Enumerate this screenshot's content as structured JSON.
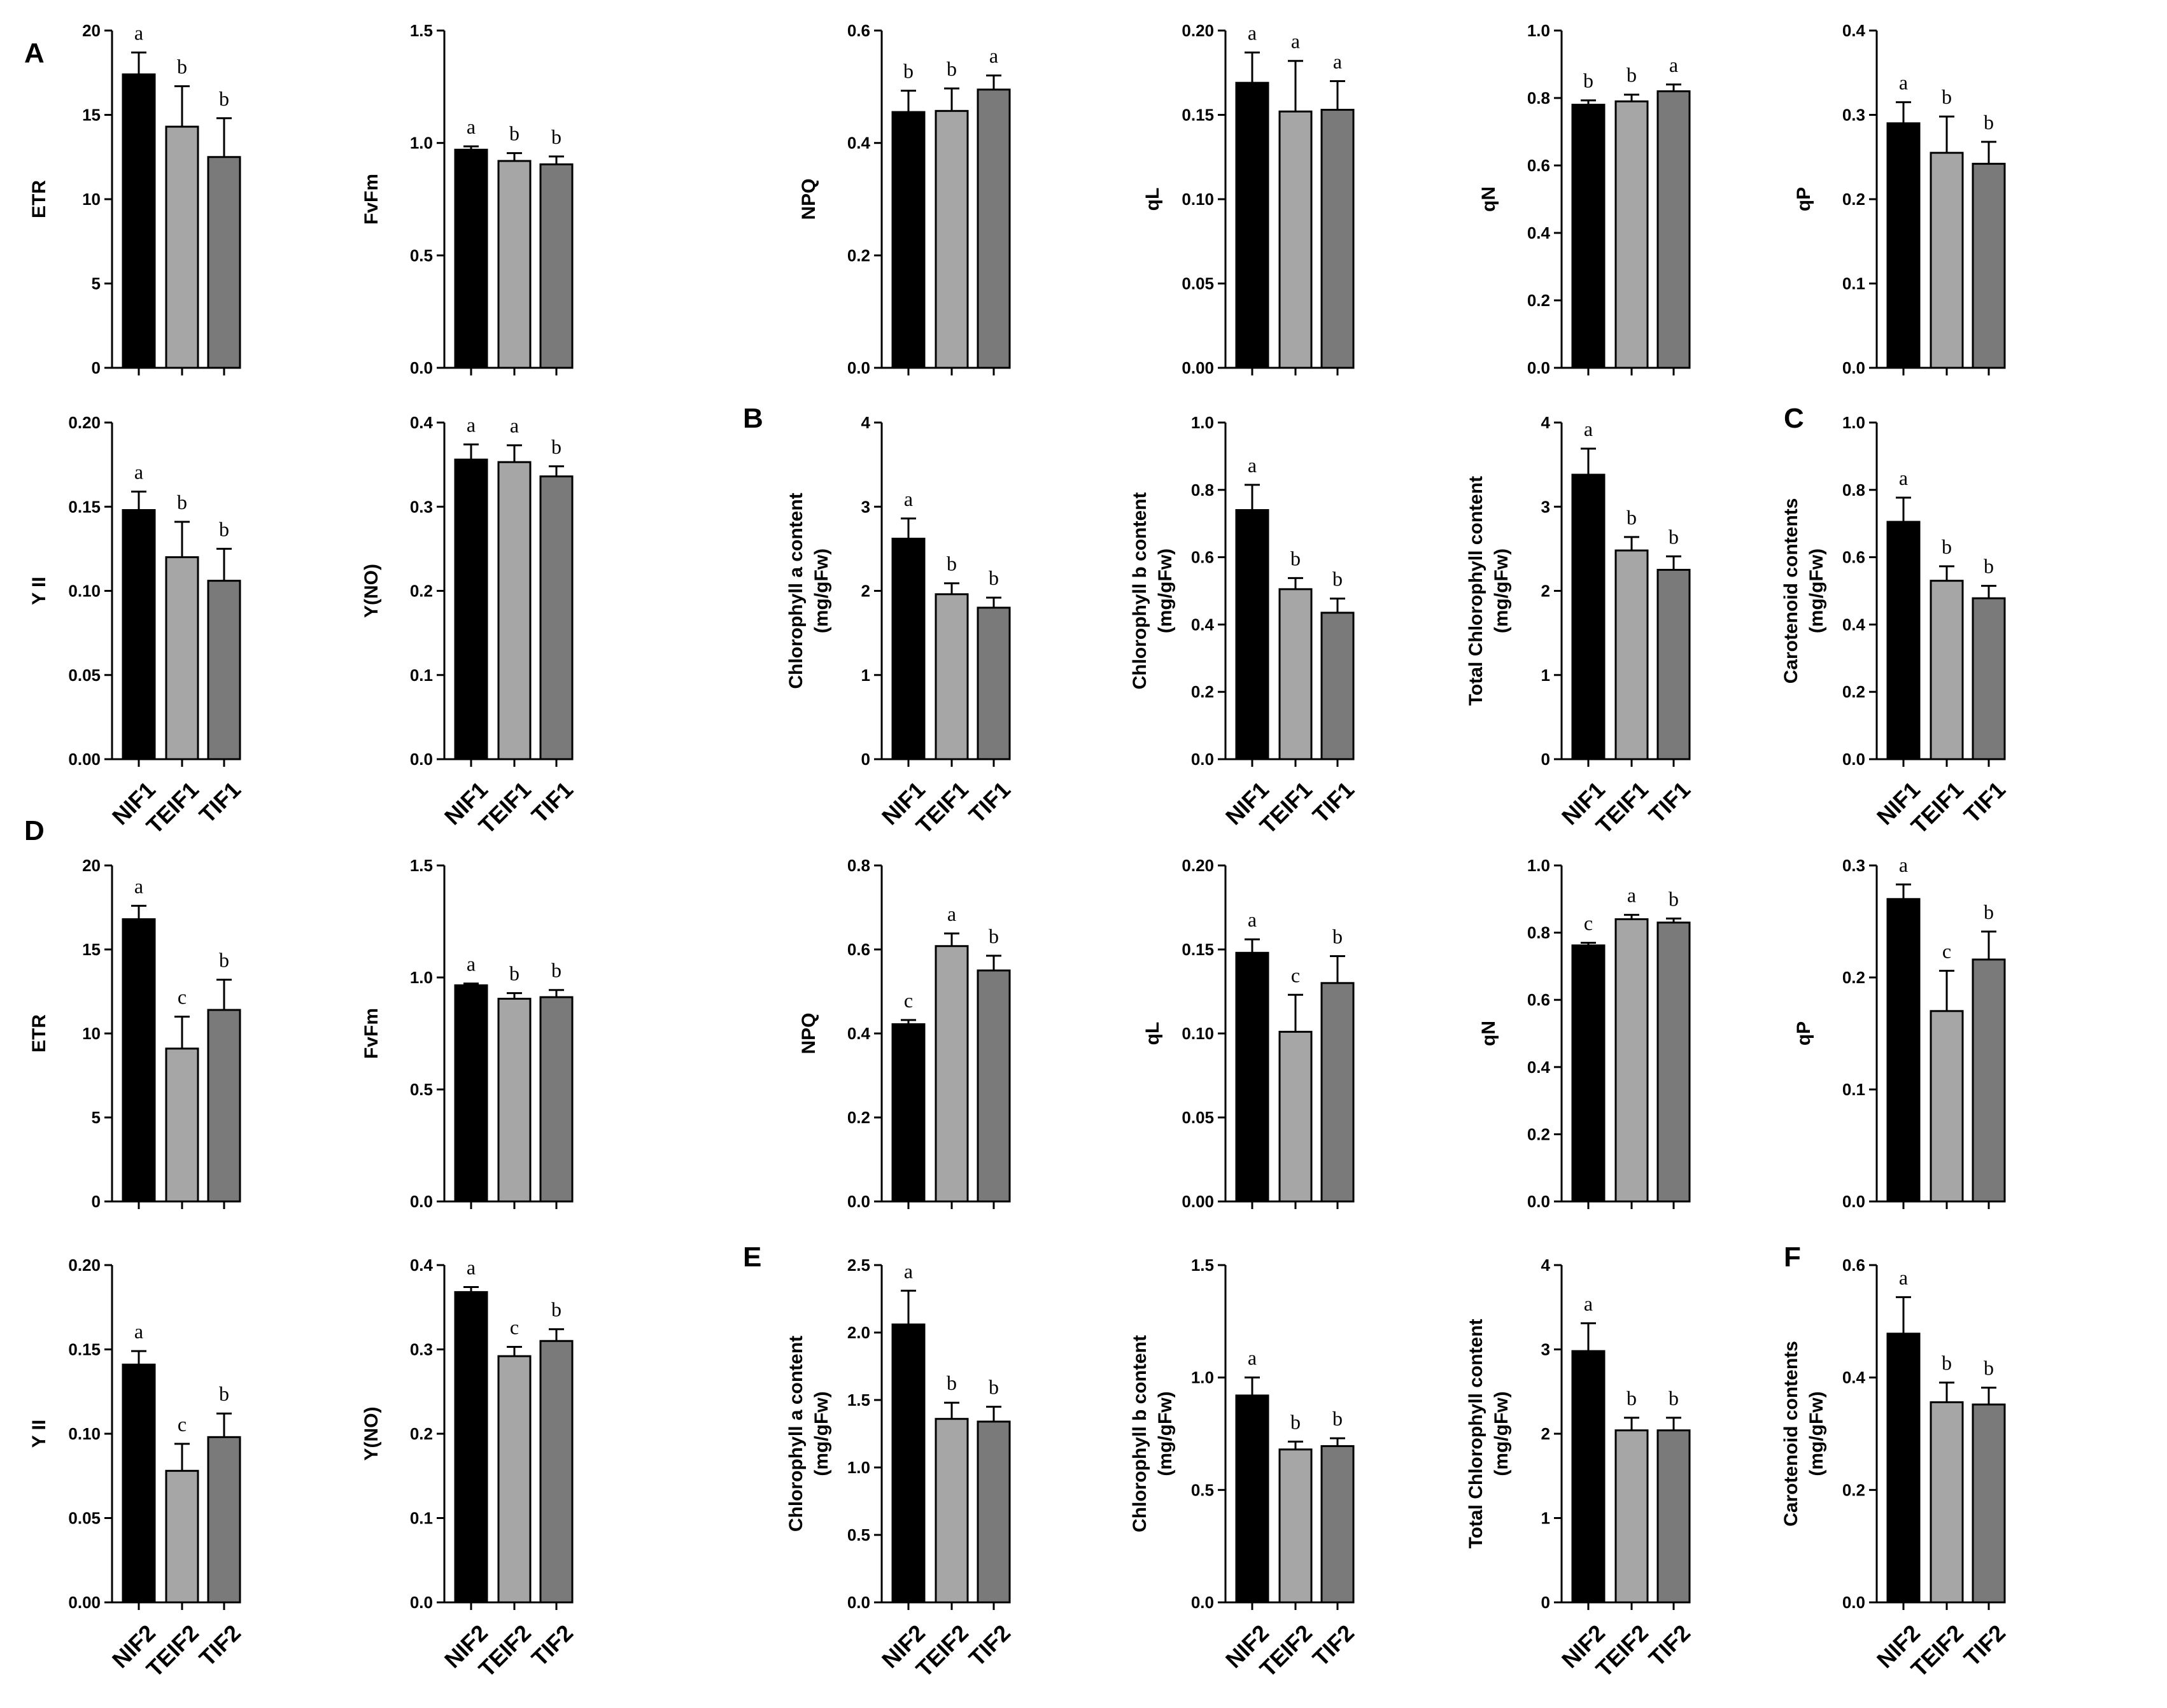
{
  "figure": {
    "bar_colors": [
      "#000000",
      "#a6a6a6",
      "#7a7a7a"
    ],
    "panel_labels": [
      "A",
      "B",
      "C",
      "D",
      "E",
      "F"
    ]
  },
  "chart_data": [
    {
      "type": "bar",
      "group": "A",
      "ylabel": [
        "ETR"
      ],
      "categories": [
        "NIF1",
        "TEIF1",
        "TIF1"
      ],
      "values": [
        17.4,
        14.3,
        12.5
      ],
      "errors": [
        1.3,
        2.4,
        2.3
      ],
      "letters": [
        "a",
        "b",
        "b"
      ],
      "ylim": [
        0,
        20
      ],
      "yticks": [
        "0",
        "5",
        "10",
        "15",
        "20"
      ]
    },
    {
      "type": "bar",
      "group": "A",
      "ylabel": [
        "FvFm"
      ],
      "categories": [
        "NIF1",
        "TEIF1",
        "TIF1"
      ],
      "values": [
        0.97,
        0.92,
        0.905
      ],
      "errors": [
        0.015,
        0.035,
        0.035
      ],
      "letters": [
        "a",
        "b",
        "b"
      ],
      "ylim": [
        0,
        1.5
      ],
      "yticks": [
        "0.0",
        "0.5",
        "1.0",
        "1.5"
      ]
    },
    {
      "type": "bar",
      "group": "A",
      "ylabel": [
        "NPQ"
      ],
      "categories": [
        "NIF1",
        "TEIF1",
        "TIF1"
      ],
      "values": [
        0.455,
        0.457,
        0.495
      ],
      "errors": [
        0.038,
        0.04,
        0.025
      ],
      "letters": [
        "b",
        "b",
        "a"
      ],
      "ylim": [
        0,
        0.6
      ],
      "yticks": [
        "0.0",
        "0.2",
        "0.4",
        "0.6"
      ]
    },
    {
      "type": "bar",
      "group": "A",
      "ylabel": [
        "qL"
      ],
      "categories": [
        "NIF1",
        "TEIF1",
        "TIF1"
      ],
      "values": [
        0.169,
        0.152,
        0.153
      ],
      "errors": [
        0.018,
        0.03,
        0.017
      ],
      "letters": [
        "a",
        "a",
        "a"
      ],
      "ylim": [
        0,
        0.2
      ],
      "yticks": [
        "0.00",
        "0.05",
        "0.10",
        "0.15",
        "0.20"
      ]
    },
    {
      "type": "bar",
      "group": "A",
      "ylabel": [
        "qN"
      ],
      "categories": [
        "NIF1",
        "TEIF1",
        "TIF1"
      ],
      "values": [
        0.78,
        0.79,
        0.82
      ],
      "errors": [
        0.013,
        0.02,
        0.02
      ],
      "letters": [
        "b",
        "b",
        "a"
      ],
      "ylim": [
        0,
        1
      ],
      "yticks": [
        "0.0",
        "0.2",
        "0.4",
        "0.6",
        "0.8",
        "1.0"
      ]
    },
    {
      "type": "bar",
      "group": "A",
      "ylabel": [
        "qP"
      ],
      "categories": [
        "NIF1",
        "TEIF1",
        "TIF1"
      ],
      "values": [
        0.29,
        0.255,
        0.242
      ],
      "errors": [
        0.025,
        0.043,
        0.026
      ],
      "letters": [
        "a",
        "b",
        "b"
      ],
      "ylim": [
        0,
        0.4
      ],
      "yticks": [
        "0.0",
        "0.1",
        "0.2",
        "0.3",
        "0.4"
      ]
    },
    {
      "type": "bar",
      "group": "A",
      "ylabel": [
        "Y II"
      ],
      "categories": [
        "NIF1",
        "TEIF1",
        "TIF1"
      ],
      "values": [
        0.148,
        0.12,
        0.106
      ],
      "errors": [
        0.011,
        0.021,
        0.019
      ],
      "letters": [
        "a",
        "b",
        "b"
      ],
      "ylim": [
        0,
        0.2
      ],
      "yticks": [
        "0.00",
        "0.05",
        "0.10",
        "0.15",
        "0.20"
      ]
    },
    {
      "type": "bar",
      "group": "A",
      "ylabel": [
        "Y(NO)"
      ],
      "categories": [
        "NIF1",
        "TEIF1",
        "TIF1"
      ],
      "values": [
        0.356,
        0.353,
        0.336
      ],
      "errors": [
        0.018,
        0.02,
        0.012
      ],
      "letters": [
        "a",
        "a",
        "b"
      ],
      "ylim": [
        0,
        0.4
      ],
      "yticks": [
        "0.0",
        "0.1",
        "0.2",
        "0.3",
        "0.4"
      ]
    },
    {
      "type": "bar",
      "group": "B",
      "ylabel": [
        "Chlorophyll a content",
        "(mg/gFw)"
      ],
      "categories": [
        "NIF1",
        "TEIF1",
        "TIF1"
      ],
      "values": [
        2.62,
        1.96,
        1.8
      ],
      "errors": [
        0.24,
        0.13,
        0.12
      ],
      "letters": [
        "a",
        "b",
        "b"
      ],
      "ylim": [
        0,
        4
      ],
      "yticks": [
        "0",
        "1",
        "2",
        "3",
        "4"
      ]
    },
    {
      "type": "bar",
      "group": "B",
      "ylabel": [
        "Chlorophyll b content",
        "(mg/gFw)"
      ],
      "categories": [
        "NIF1",
        "TEIF1",
        "TIF1"
      ],
      "values": [
        0.74,
        0.505,
        0.435
      ],
      "errors": [
        0.075,
        0.033,
        0.042
      ],
      "letters": [
        "a",
        "b",
        "b"
      ],
      "ylim": [
        0,
        1
      ],
      "yticks": [
        "0.0",
        "0.2",
        "0.4",
        "0.6",
        "0.8",
        "1.0"
      ]
    },
    {
      "type": "bar",
      "group": "B",
      "ylabel": [
        "Total Chlorophyll content",
        "(mg/gFw)"
      ],
      "categories": [
        "NIF1",
        "TEIF1",
        "TIF1"
      ],
      "values": [
        3.38,
        2.48,
        2.25
      ],
      "errors": [
        0.31,
        0.16,
        0.16
      ],
      "letters": [
        "a",
        "b",
        "b"
      ],
      "ylim": [
        0,
        4
      ],
      "yticks": [
        "0",
        "1",
        "2",
        "3",
        "4"
      ]
    },
    {
      "type": "bar",
      "group": "C",
      "ylabel": [
        "Carotenoid contents",
        "(mg/gFw)"
      ],
      "categories": [
        "NIF1",
        "TEIF1",
        "TIF1"
      ],
      "values": [
        0.705,
        0.53,
        0.478
      ],
      "errors": [
        0.072,
        0.043,
        0.037
      ],
      "letters": [
        "a",
        "b",
        "b"
      ],
      "ylim": [
        0,
        1
      ],
      "yticks": [
        "0.0",
        "0.2",
        "0.4",
        "0.6",
        "0.8",
        "1.0"
      ]
    },
    {
      "type": "bar",
      "group": "D",
      "ylabel": [
        "ETR"
      ],
      "categories": [
        "NIF2",
        "TEIF2",
        "TIF2"
      ],
      "values": [
        16.8,
        9.1,
        11.4
      ],
      "errors": [
        0.8,
        1.9,
        1.8
      ],
      "letters": [
        "a",
        "c",
        "b"
      ],
      "ylim": [
        0,
        20
      ],
      "yticks": [
        "0",
        "5",
        "10",
        "15",
        "20"
      ]
    },
    {
      "type": "bar",
      "group": "D",
      "ylabel": [
        "FvFm"
      ],
      "categories": [
        "NIF2",
        "TEIF2",
        "TIF2"
      ],
      "values": [
        0.965,
        0.905,
        0.912
      ],
      "errors": [
        0.008,
        0.025,
        0.032
      ],
      "letters": [
        "a",
        "b",
        "b"
      ],
      "ylim": [
        0,
        1.5
      ],
      "yticks": [
        "0.0",
        "0.5",
        "1.0",
        "1.5"
      ]
    },
    {
      "type": "bar",
      "group": "D",
      "ylabel": [
        "NPQ"
      ],
      "categories": [
        "NIF2",
        "TEIF2",
        "TIF2"
      ],
      "values": [
        0.422,
        0.608,
        0.55
      ],
      "errors": [
        0.01,
        0.03,
        0.035
      ],
      "letters": [
        "c",
        "a",
        "b"
      ],
      "ylim": [
        0,
        0.8
      ],
      "yticks": [
        "0.0",
        "0.2",
        "0.4",
        "0.6",
        "0.8"
      ]
    },
    {
      "type": "bar",
      "group": "D",
      "ylabel": [
        "qL"
      ],
      "categories": [
        "NIF2",
        "TEIF2",
        "TIF2"
      ],
      "values": [
        0.148,
        0.101,
        0.13
      ],
      "errors": [
        0.008,
        0.022,
        0.016
      ],
      "letters": [
        "a",
        "c",
        "b"
      ],
      "ylim": [
        0,
        0.2
      ],
      "yticks": [
        "0.00",
        "0.05",
        "0.10",
        "0.15",
        "0.20"
      ]
    },
    {
      "type": "bar",
      "group": "D",
      "ylabel": [
        "qN"
      ],
      "categories": [
        "NIF2",
        "TEIF2",
        "TIF2"
      ],
      "values": [
        0.762,
        0.84,
        0.83
      ],
      "errors": [
        0.008,
        0.013,
        0.012
      ],
      "letters": [
        "c",
        "a",
        "b"
      ],
      "ylim": [
        0,
        1
      ],
      "yticks": [
        "0.0",
        "0.2",
        "0.4",
        "0.6",
        "0.8",
        "1.0"
      ]
    },
    {
      "type": "bar",
      "group": "D",
      "ylabel": [
        "qP"
      ],
      "categories": [
        "NIF2",
        "TEIF2",
        "TIF2"
      ],
      "values": [
        0.27,
        0.17,
        0.216
      ],
      "errors": [
        0.013,
        0.036,
        0.025
      ],
      "letters": [
        "a",
        "c",
        "b"
      ],
      "ylim": [
        0,
        0.3
      ],
      "yticks": [
        "0.0",
        "0.1",
        "0.2",
        "0.3"
      ]
    },
    {
      "type": "bar",
      "group": "D",
      "ylabel": [
        "Y II"
      ],
      "categories": [
        "NIF2",
        "TEIF2",
        "TIF2"
      ],
      "values": [
        0.141,
        0.078,
        0.098
      ],
      "errors": [
        0.008,
        0.016,
        0.014
      ],
      "letters": [
        "a",
        "c",
        "b"
      ],
      "ylim": [
        0,
        0.2
      ],
      "yticks": [
        "0.00",
        "0.05",
        "0.10",
        "0.15",
        "0.20"
      ]
    },
    {
      "type": "bar",
      "group": "D",
      "ylabel": [
        "Y(NO)"
      ],
      "categories": [
        "NIF2",
        "TEIF2",
        "TIF2"
      ],
      "values": [
        0.368,
        0.292,
        0.31
      ],
      "errors": [
        0.006,
        0.011,
        0.014
      ],
      "letters": [
        "a",
        "c",
        "b"
      ],
      "ylim": [
        0,
        0.4
      ],
      "yticks": [
        "0.0",
        "0.1",
        "0.2",
        "0.3",
        "0.4"
      ]
    },
    {
      "type": "bar",
      "group": "E",
      "ylabel": [
        "Chlorophyll a content",
        "(mg/gFw)"
      ],
      "categories": [
        "NIF2",
        "TEIF2",
        "TIF2"
      ],
      "values": [
        2.06,
        1.36,
        1.34
      ],
      "errors": [
        0.25,
        0.12,
        0.11
      ],
      "letters": [
        "a",
        "b",
        "b"
      ],
      "ylim": [
        0,
        2.5
      ],
      "yticks": [
        "0.0",
        "0.5",
        "1.0",
        "1.5",
        "2.0",
        "2.5"
      ]
    },
    {
      "type": "bar",
      "group": "E",
      "ylabel": [
        "Chlorophyll b content",
        "(mg/gFw)"
      ],
      "categories": [
        "NIF2",
        "TEIF2",
        "TIF2"
      ],
      "values": [
        0.92,
        0.68,
        0.695
      ],
      "errors": [
        0.08,
        0.035,
        0.035
      ],
      "letters": [
        "a",
        "b",
        "b"
      ],
      "ylim": [
        0,
        1.5
      ],
      "yticks": [
        "0.0",
        "0.5",
        "1.0",
        "1.5"
      ]
    },
    {
      "type": "bar",
      "group": "E",
      "ylabel": [
        "Total Chlorophyll content",
        "(mg/gFw)"
      ],
      "categories": [
        "NIF2",
        "TEIF2",
        "TIF2"
      ],
      "values": [
        2.98,
        2.04,
        2.04
      ],
      "errors": [
        0.33,
        0.15,
        0.15
      ],
      "letters": [
        "a",
        "b",
        "b"
      ],
      "ylim": [
        0,
        4
      ],
      "yticks": [
        "0",
        "1",
        "2",
        "3",
        "4"
      ]
    },
    {
      "type": "bar",
      "group": "F",
      "ylabel": [
        "Carotenoid contents",
        "(mg/gFw)"
      ],
      "categories": [
        "NIF2",
        "TEIF2",
        "TIF2"
      ],
      "values": [
        0.478,
        0.356,
        0.352
      ],
      "errors": [
        0.065,
        0.035,
        0.03
      ],
      "letters": [
        "a",
        "b",
        "b"
      ],
      "ylim": [
        0,
        0.6
      ],
      "yticks": [
        "0.0",
        "0.2",
        "0.4",
        "0.6"
      ]
    }
  ]
}
